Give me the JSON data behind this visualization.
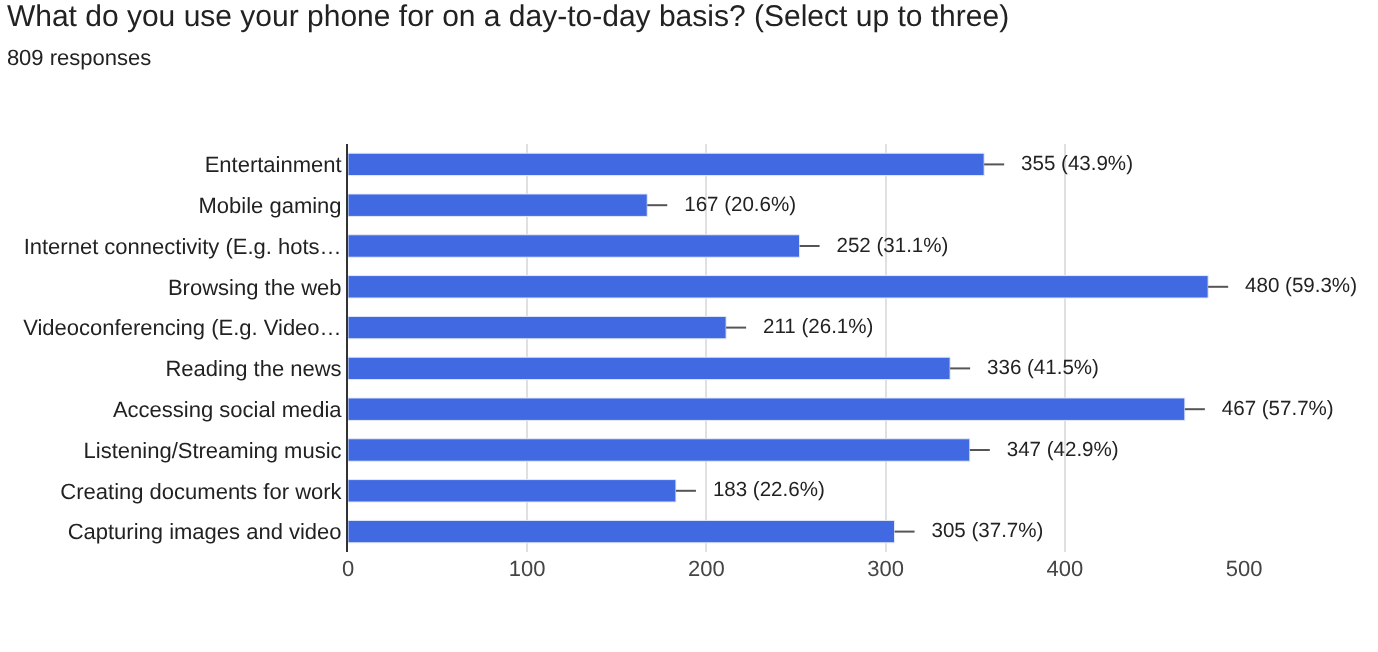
{
  "chart_data": {
    "type": "bar",
    "orientation": "horizontal",
    "title": "What do you use your phone for on a day-to-day basis? (Select up to three)",
    "subtitle": "809 responses",
    "categories": [
      "Entertainment",
      "Mobile gaming",
      "Internet connectivity (E.g. hots…",
      "Browsing the web",
      "Videoconferencing (E.g. Video…",
      "Reading the news",
      "Accessing social media",
      "Listening/Streaming music",
      "Creating documents for work",
      "Capturing images and video"
    ],
    "values": [
      355,
      167,
      252,
      480,
      211,
      336,
      467,
      347,
      183,
      305
    ],
    "value_labels": [
      "355 (43.9%)",
      "167 (20.6%)",
      "252 (31.1%)",
      "480 (59.3%)",
      "211 (26.1%)",
      "336 (41.5%)",
      "467 (57.7%)",
      "347 (42.9%)",
      "183 (22.6%)",
      "305 (37.7%)"
    ],
    "color": "#4169e1",
    "xlim": [
      0,
      500
    ],
    "xticks": [
      0,
      100,
      200,
      300,
      400,
      500
    ],
    "grid": "x",
    "legend": false
  }
}
